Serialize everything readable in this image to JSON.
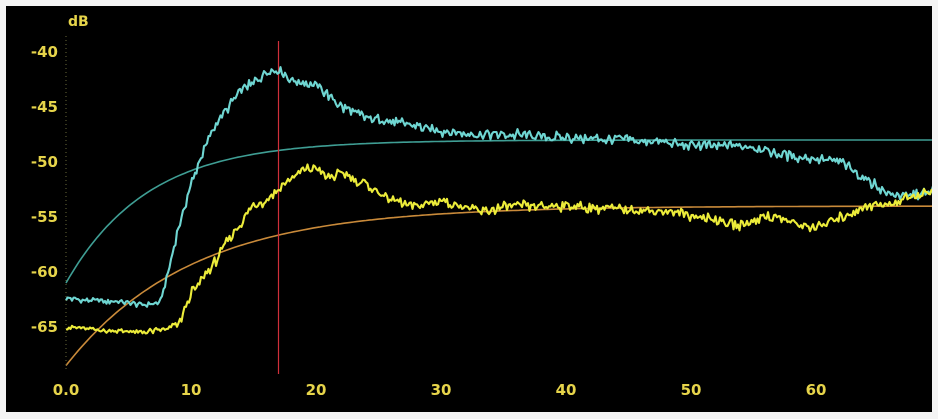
{
  "chart_data": {
    "type": "line",
    "title": "",
    "ylabel": "dB",
    "xlabel": "",
    "xlim": [
      0,
      70
    ],
    "ylim": [
      -68,
      -38
    ],
    "x_ticks": [
      0,
      10,
      20,
      30,
      40,
      50,
      60
    ],
    "x_tick_labels": [
      "0.0",
      "10",
      "20",
      "30",
      "40",
      "50",
      "60"
    ],
    "y_ticks": [
      -40,
      -45,
      -50,
      -55,
      -60,
      -65
    ],
    "y_tick_labels": [
      "-40",
      "-45",
      "-50",
      "-55",
      "-60",
      "-65"
    ],
    "grid": false,
    "legend": "none",
    "colors": {
      "background": "#000000",
      "cyan_series": "#6fd6d2",
      "yellow_series": "#ecec3a",
      "cyan_fit": "#3f9e94",
      "yellow_fit": "#c98a3a",
      "marker_line": "#d0303a",
      "tick_text": "#e6d44a"
    },
    "marker_x": 17,
    "series": [
      {
        "color": "cyan",
        "points": [
          [
            0,
            -62.4
          ],
          [
            2,
            -62.6
          ],
          [
            4,
            -62.7
          ],
          [
            6,
            -63.0
          ],
          [
            7.5,
            -62.8
          ],
          [
            8.2,
            -60.0
          ],
          [
            9,
            -56.0
          ],
          [
            10,
            -52.0
          ],
          [
            11,
            -49.0
          ],
          [
            12,
            -46.5
          ],
          [
            13,
            -45.0
          ],
          [
            14,
            -43.5
          ],
          [
            15,
            -42.8
          ],
          [
            16,
            -41.8
          ],
          [
            17,
            -41.5
          ],
          [
            18,
            -42.5
          ],
          [
            19,
            -42.8
          ],
          [
            20,
            -43.0
          ],
          [
            22,
            -45.0
          ],
          [
            24,
            -46.0
          ],
          [
            27,
            -46.5
          ],
          [
            30,
            -47.2
          ],
          [
            33,
            -47.5
          ],
          [
            36,
            -47.5
          ],
          [
            40,
            -47.8
          ],
          [
            45,
            -48.0
          ],
          [
            50,
            -48.5
          ],
          [
            55,
            -48.6
          ],
          [
            58,
            -49.5
          ],
          [
            60,
            -49.7
          ],
          [
            62,
            -50.0
          ],
          [
            64,
            -51.5
          ],
          [
            66,
            -53.0
          ],
          [
            68,
            -53.0
          ],
          [
            70,
            -52.5
          ]
        ]
      },
      {
        "color": "yellow",
        "points": [
          [
            0,
            -65.0
          ],
          [
            3,
            -65.3
          ],
          [
            6,
            -65.5
          ],
          [
            8,
            -65.2
          ],
          [
            9,
            -64.8
          ],
          [
            10,
            -62.0
          ],
          [
            11,
            -60.5
          ],
          [
            12,
            -59.0
          ],
          [
            13,
            -57.0
          ],
          [
            14,
            -55.5
          ],
          [
            15,
            -54.0
          ],
          [
            16,
            -53.5
          ],
          [
            17,
            -52.5
          ],
          [
            18,
            -51.5
          ],
          [
            19,
            -50.8
          ],
          [
            20,
            -50.5
          ],
          [
            21,
            -51.5
          ],
          [
            22,
            -51.0
          ],
          [
            24,
            -52.0
          ],
          [
            26,
            -53.5
          ],
          [
            28,
            -54.0
          ],
          [
            30,
            -53.5
          ],
          [
            33,
            -54.5
          ],
          [
            36,
            -54.0
          ],
          [
            40,
            -54.0
          ],
          [
            44,
            -54.3
          ],
          [
            48,
            -54.5
          ],
          [
            52,
            -55.2
          ],
          [
            54,
            -55.8
          ],
          [
            56,
            -54.8
          ],
          [
            58,
            -55.5
          ],
          [
            60,
            -56.0
          ],
          [
            62,
            -55.0
          ],
          [
            64,
            -54.0
          ],
          [
            66,
            -53.8
          ],
          [
            68,
            -53.0
          ],
          [
            70,
            -52.5
          ]
        ]
      }
    ],
    "fit_curves": [
      {
        "color": "cyan",
        "asymptote": -48.0,
        "start": -61.0,
        "time_constant": 6.5
      },
      {
        "color": "yellow",
        "asymptote": -54.0,
        "start": -68.5,
        "time_constant": 10.0
      }
    ]
  }
}
